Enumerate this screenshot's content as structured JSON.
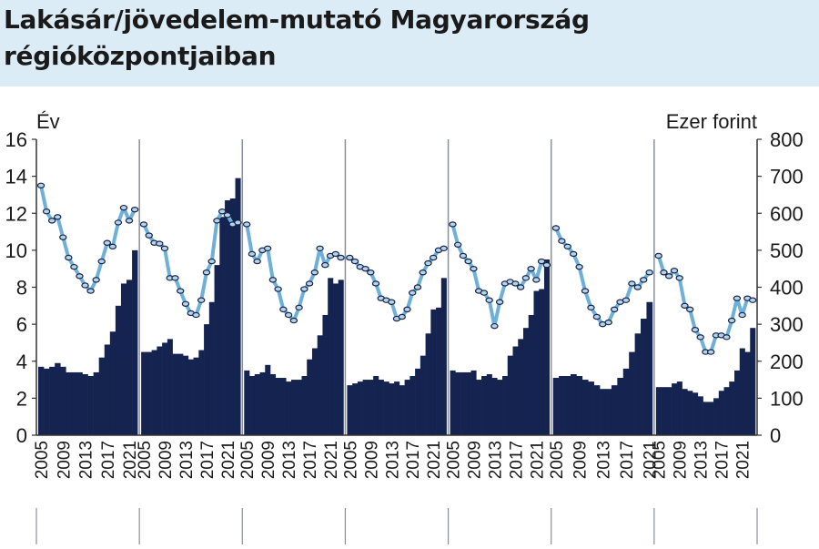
{
  "title": "Lakásár/jövedelem-mutató Magyarország régióközpontjaiban",
  "colors": {
    "bar": "#14234f",
    "line": "#6fb0d8",
    "marker_fill": "#b7d3e6",
    "marker_stroke": "#14234f",
    "background_band": "#dcecf6"
  },
  "chart_data": {
    "type": "bar",
    "left_axis": {
      "unit": "Év",
      "min": 0,
      "max": 16,
      "ticks": [
        "0",
        "2",
        "4",
        "6",
        "8",
        "10",
        "12",
        "14",
        "16"
      ]
    },
    "right_axis": {
      "unit": "Ezer forint",
      "min": 0,
      "max": 800,
      "ticks": [
        "0",
        "100",
        "200",
        "300",
        "400",
        "500",
        "600",
        "700",
        "800"
      ]
    },
    "x_tick_labels": [
      "2005",
      "2009",
      "2013",
      "2017",
      "2021"
    ],
    "grid": false,
    "panels": [
      {
        "bars": [
          3.7,
          3.6,
          3.7,
          3.9,
          3.7,
          3.4,
          3.4,
          3.4,
          3.3,
          3.2,
          3.4,
          4.2,
          4.9,
          5.6,
          7.0,
          8.2,
          8.4,
          10.0
        ],
        "line": [
          675,
          605,
          580,
          590,
          535,
          480,
          455,
          430,
          405,
          390,
          420,
          470,
          520,
          510,
          575,
          615,
          580,
          610
        ]
      },
      {
        "bars": [
          4.5,
          4.5,
          4.6,
          4.8,
          5.0,
          5.2,
          4.4,
          4.4,
          4.3,
          4.1,
          4.2,
          4.6,
          6.0,
          7.2,
          9.2,
          11.8,
          12.7,
          12.8,
          13.9
        ],
        "line": [
          570,
          540,
          520,
          518,
          505,
          425,
          425,
          390,
          355,
          330,
          325,
          365,
          440,
          470,
          580,
          605,
          595,
          570,
          575
        ]
      },
      {
        "bars": [
          3.5,
          3.2,
          3.3,
          3.4,
          3.8,
          3.3,
          3.1,
          3.1,
          2.9,
          3.0,
          3.0,
          3.2,
          4.1,
          4.7,
          5.4,
          6.5,
          8.5,
          8.2,
          8.4
        ],
        "line": [
          570,
          490,
          470,
          500,
          505,
          420,
          395,
          340,
          325,
          310,
          345,
          395,
          410,
          440,
          505,
          460,
          485,
          490,
          480
        ]
      },
      {
        "bars": [
          2.7,
          2.8,
          2.9,
          3.0,
          3.0,
          3.2,
          3.0,
          2.9,
          2.8,
          2.9,
          2.7,
          3.0,
          3.2,
          3.6,
          4.3,
          5.5,
          6.8,
          6.9,
          8.5
        ],
        "line": [
          480,
          470,
          455,
          450,
          440,
          410,
          370,
          365,
          360,
          315,
          320,
          340,
          385,
          400,
          440,
          465,
          480,
          500,
          505
        ]
      },
      {
        "bars": [
          3.5,
          3.4,
          3.4,
          3.4,
          3.5,
          3.0,
          3.2,
          3.3,
          3.1,
          3.0,
          3.2,
          4.3,
          4.8,
          5.2,
          5.8,
          6.5,
          7.8,
          7.9,
          9.5
        ],
        "line": [
          570,
          515,
          485,
          470,
          450,
          390,
          385,
          365,
          295,
          360,
          410,
          415,
          410,
          400,
          425,
          450,
          420,
          470,
          460
        ]
      },
      {
        "bars": [
          3.1,
          3.2,
          3.2,
          3.3,
          3.2,
          3.0,
          2.9,
          2.7,
          2.5,
          2.5,
          2.7,
          3.1,
          3.6,
          4.5,
          5.5,
          6.3,
          7.2
        ],
        "line": [
          560,
          525,
          510,
          490,
          455,
          390,
          345,
          320,
          300,
          305,
          340,
          360,
          365,
          410,
          400,
          420,
          440
        ]
      },
      {
        "bars": [
          2.6,
          2.6,
          2.6,
          2.8,
          2.9,
          2.5,
          2.4,
          2.3,
          2.1,
          1.8,
          1.8,
          2.0,
          2.4,
          2.6,
          2.9,
          3.5,
          4.7,
          4.5,
          5.8
        ],
        "line": [
          485,
          440,
          430,
          445,
          425,
          350,
          340,
          285,
          265,
          225,
          225,
          270,
          270,
          265,
          310,
          370,
          325,
          370,
          365
        ]
      }
    ]
  }
}
